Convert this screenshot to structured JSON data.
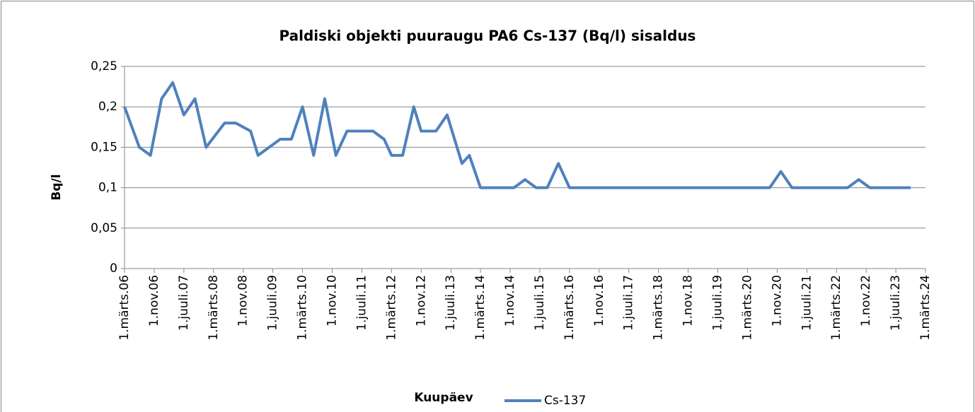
{
  "chart_data": {
    "type": "line",
    "title": "Paldiski objekti puuraugu PA6 Cs-137 (Bq/l) sisaldus",
    "x_label": "Kuupäev",
    "y_label": "Bq/l",
    "x": [
      "2006-03-01",
      "2006-07-01",
      "2006-10-01",
      "2007-01-01",
      "2007-04-01",
      "2007-07-01",
      "2007-10-01",
      "2008-01-01",
      "2008-06-01",
      "2008-09-01",
      "2009-01-01",
      "2009-03-01",
      "2009-09-01",
      "2009-12-01",
      "2010-03-01",
      "2010-06-01",
      "2010-09-01",
      "2010-12-01",
      "2011-03-01",
      "2011-10-01",
      "2012-01-01",
      "2012-03-01",
      "2012-06-01",
      "2012-09-01",
      "2012-11-01",
      "2013-03-01",
      "2013-06-01",
      "2013-10-01",
      "2013-12-01",
      "2014-03-01",
      "2014-12-01",
      "2015-03-01",
      "2015-06-01",
      "2015-09-01",
      "2015-12-01",
      "2016-03-01",
      "2020-09-01",
      "2020-12-01",
      "2021-03-01",
      "2022-06-01",
      "2022-09-01",
      "2022-12-01",
      "2023-11-01"
    ],
    "series": [
      {
        "name": "Cs-137",
        "color": "#4f81bd",
        "values": [
          0.2,
          0.15,
          0.14,
          0.21,
          0.23,
          0.19,
          0.21,
          0.15,
          0.18,
          0.18,
          0.17,
          0.14,
          0.16,
          0.16,
          0.2,
          0.14,
          0.21,
          0.14,
          0.17,
          0.17,
          0.16,
          0.14,
          0.14,
          0.2,
          0.17,
          0.17,
          0.19,
          0.13,
          0.14,
          0.1,
          0.1,
          0.11,
          0.1,
          0.1,
          0.13,
          0.1,
          0.1,
          0.12,
          0.1,
          0.1,
          0.11,
          0.1,
          0.1
        ]
      }
    ],
    "xlim": [
      "2006-03-01",
      "2024-03-01"
    ],
    "xticks": [
      {
        "value": "2006-03-01",
        "label": "1.märts.06"
      },
      {
        "value": "2006-11-01",
        "label": "1.nov.06"
      },
      {
        "value": "2007-07-01",
        "label": "1.juuli.07"
      },
      {
        "value": "2008-03-01",
        "label": "1.märts.08"
      },
      {
        "value": "2008-11-01",
        "label": "1.nov.08"
      },
      {
        "value": "2009-07-01",
        "label": "1.juuli.09"
      },
      {
        "value": "2010-03-01",
        "label": "1.märts.10"
      },
      {
        "value": "2010-11-01",
        "label": "1.nov.10"
      },
      {
        "value": "2011-07-01",
        "label": "1.juuli.11"
      },
      {
        "value": "2012-03-01",
        "label": "1.märts.12"
      },
      {
        "value": "2012-11-01",
        "label": "1.nov.12"
      },
      {
        "value": "2013-07-01",
        "label": "1.juuli.13"
      },
      {
        "value": "2014-03-01",
        "label": "1.märts.14"
      },
      {
        "value": "2014-11-01",
        "label": "1.nov.14"
      },
      {
        "value": "2015-07-01",
        "label": "1.juuli.15"
      },
      {
        "value": "2016-03-01",
        "label": "1.märts.16"
      },
      {
        "value": "2016-11-01",
        "label": "1.nov.16"
      },
      {
        "value": "2017-07-01",
        "label": "1.juuli.17"
      },
      {
        "value": "2018-03-01",
        "label": "1.märts.18"
      },
      {
        "value": "2018-11-01",
        "label": "1.nov.18"
      },
      {
        "value": "2019-07-01",
        "label": "1.juuli.19"
      },
      {
        "value": "2020-03-01",
        "label": "1.märts.20"
      },
      {
        "value": "2020-11-01",
        "label": "1.nov.20"
      },
      {
        "value": "2021-07-01",
        "label": "1.juuli.21"
      },
      {
        "value": "2022-03-01",
        "label": "1.märts.22"
      },
      {
        "value": "2022-11-01",
        "label": "1.nov.22"
      },
      {
        "value": "2023-07-01",
        "label": "1.juuli.23"
      },
      {
        "value": "2024-03-01",
        "label": "1.märts.24"
      }
    ],
    "ylim": [
      0,
      0.25
    ],
    "yticks": [
      0,
      {
        "value": 0.05,
        "label": "0,05"
      },
      {
        "value": 0.1,
        "label": "0,1"
      },
      {
        "value": 0.15,
        "label": "0,15"
      },
      {
        "value": 0.2,
        "label": "0,2"
      },
      {
        "value": 0.25,
        "label": "0,25"
      }
    ],
    "grid": true,
    "legend": "bottom"
  }
}
